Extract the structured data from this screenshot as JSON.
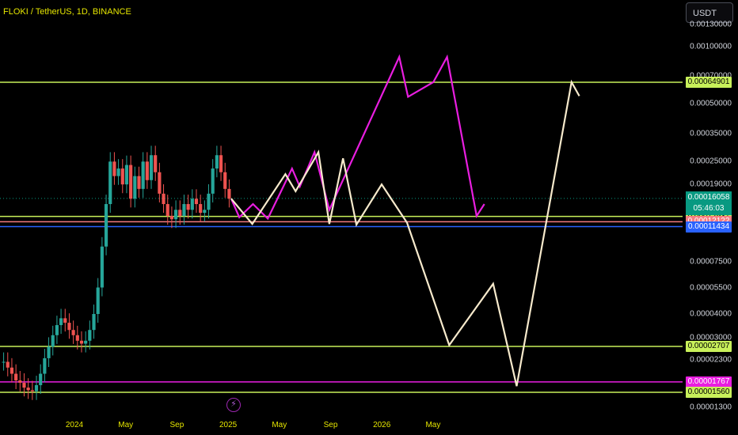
{
  "header": {
    "title": "FLOKI / TetherUS, 1D, BINANCE",
    "currency": "USDT"
  },
  "chart_data": {
    "type": "line",
    "title": "FLOKI / TetherUS, 1D, BINANCE",
    "y_scale": "log",
    "ylim": [
      1.25e-05,
      0.0015
    ],
    "y_ticks": [
      "0.00130000",
      "0.00100000",
      "0.00070000",
      "0.00050000",
      "0.00035000",
      "0.00025000",
      "0.00019000",
      "0.00007500",
      "0.00005500",
      "0.00004000",
      "0.00003000",
      "0.00002300",
      "0.00001300"
    ],
    "x_ticks": [
      "2024",
      "May",
      "Sep",
      "2025",
      "May",
      "Sep",
      "2026",
      "May"
    ],
    "horizontal_levels": [
      {
        "value": 0.00064901,
        "label": "0.00064901",
        "color": "#c8f05a"
      },
      {
        "value": 0.00012937,
        "label": "0.00012937",
        "color": "#c8f05a"
      },
      {
        "value": 0.00012122,
        "label": "0.00012122",
        "color": "#f77c80"
      },
      {
        "value": 0.00011434,
        "label": "0.00011434",
        "color": "#2962ff"
      },
      {
        "value": 2.707e-05,
        "label": "0.00002707",
        "color": "#c8f05a"
      },
      {
        "value": 1.767e-05,
        "label": "0.00001767",
        "color": "#e91ee0"
      },
      {
        "value": 1.56e-05,
        "label": "0.00001560",
        "color": "#c8f05a"
      }
    ],
    "current_price": {
      "value": 0.00016058,
      "label": "0.00016058",
      "countdown": "05:46:03",
      "color": "#089981"
    },
    "candles_close": [
      2.25e-05,
      2.1e-05,
      1.95e-05,
      1.8e-05,
      1.75e-05,
      1.65e-05,
      1.6e-05,
      1.58e-05,
      1.7e-05,
      1.95e-05,
      2.35e-05,
      2.7e-05,
      3.1e-05,
      3.5e-05,
      3.8e-05,
      3.6e-05,
      3.3e-05,
      3.1e-05,
      2.9e-05,
      2.8e-05,
      2.9e-05,
      3.3e-05,
      4e-05,
      5.5e-05,
      9e-05,
      0.00015,
      0.00025,
      0.00021,
      0.00023,
      0.00019,
      0.00024,
      0.00016,
      0.00021,
      0.00018,
      0.00025,
      0.0002,
      0.00027,
      0.00022,
      0.00017,
      0.00015,
      0.00013,
      0.000125,
      0.00014,
      0.00013,
      0.00015,
      0.00014,
      0.00016,
      0.00015,
      0.000135,
      0.00014,
      0.00017,
      0.00023,
      0.00027,
      0.00022,
      0.00018,
      0.00016
    ],
    "series": [
      {
        "color": "#e91ee0",
        "points": [
          [
            0.0,
            0.00016
          ],
          [
            0.023,
            0.000128
          ],
          [
            0.062,
            0.00015
          ],
          [
            0.104,
            0.000126
          ],
          [
            0.173,
            0.00023
          ],
          [
            0.195,
            0.000185
          ],
          [
            0.237,
            0.00028
          ],
          [
            0.279,
            0.00014
          ],
          [
            0.478,
            0.00088
          ],
          [
            0.503,
            0.000545
          ],
          [
            0.575,
            0.00065
          ],
          [
            0.614,
            0.00088
          ],
          [
            0.698,
            0.00013
          ],
          [
            0.72,
            0.00015
          ]
        ]
      },
      {
        "color": "#f7eacc",
        "points": [
          [
            0.0,
            0.00016
          ],
          [
            0.06,
            0.000118
          ],
          [
            0.154,
            0.000215
          ],
          [
            0.183,
            0.000175
          ],
          [
            0.248,
            0.00028
          ],
          [
            0.279,
            0.000118
          ],
          [
            0.318,
            0.00026
          ],
          [
            0.356,
            0.000117
          ],
          [
            0.428,
            0.00019
          ],
          [
            0.5,
            0.00012
          ],
          [
            0.62,
            2.75e-05
          ],
          [
            0.745,
            5.75e-05
          ],
          [
            0.812,
            1.68e-05
          ],
          [
            0.968,
            0.00065
          ],
          [
            0.99,
            0.00055
          ]
        ]
      }
    ]
  }
}
